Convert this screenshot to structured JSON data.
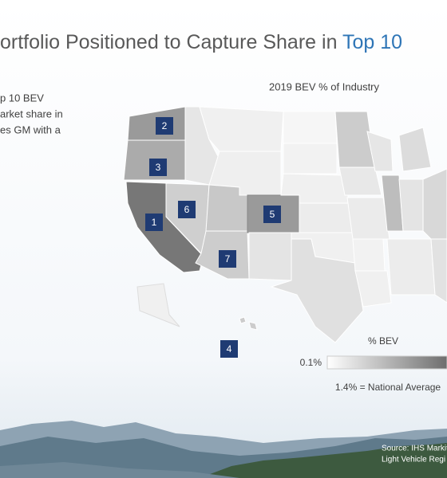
{
  "header": {
    "title": "ortfolio Positioned to Capture Share in ",
    "highlight": "Top 10"
  },
  "intro": [
    "p 10 BEV",
    "arket share in",
    "es GM with a"
  ],
  "map": {
    "title": "2019 BEV % of Industry",
    "markers": [
      "1",
      "2",
      "3",
      "4",
      "5",
      "6",
      "7"
    ]
  },
  "legend": {
    "title": "% BEV",
    "min": "0.1%",
    "note": "1.4% = National Average"
  },
  "source": [
    "Source: IHS Markit",
    "Light Vehicle Regi"
  ]
}
